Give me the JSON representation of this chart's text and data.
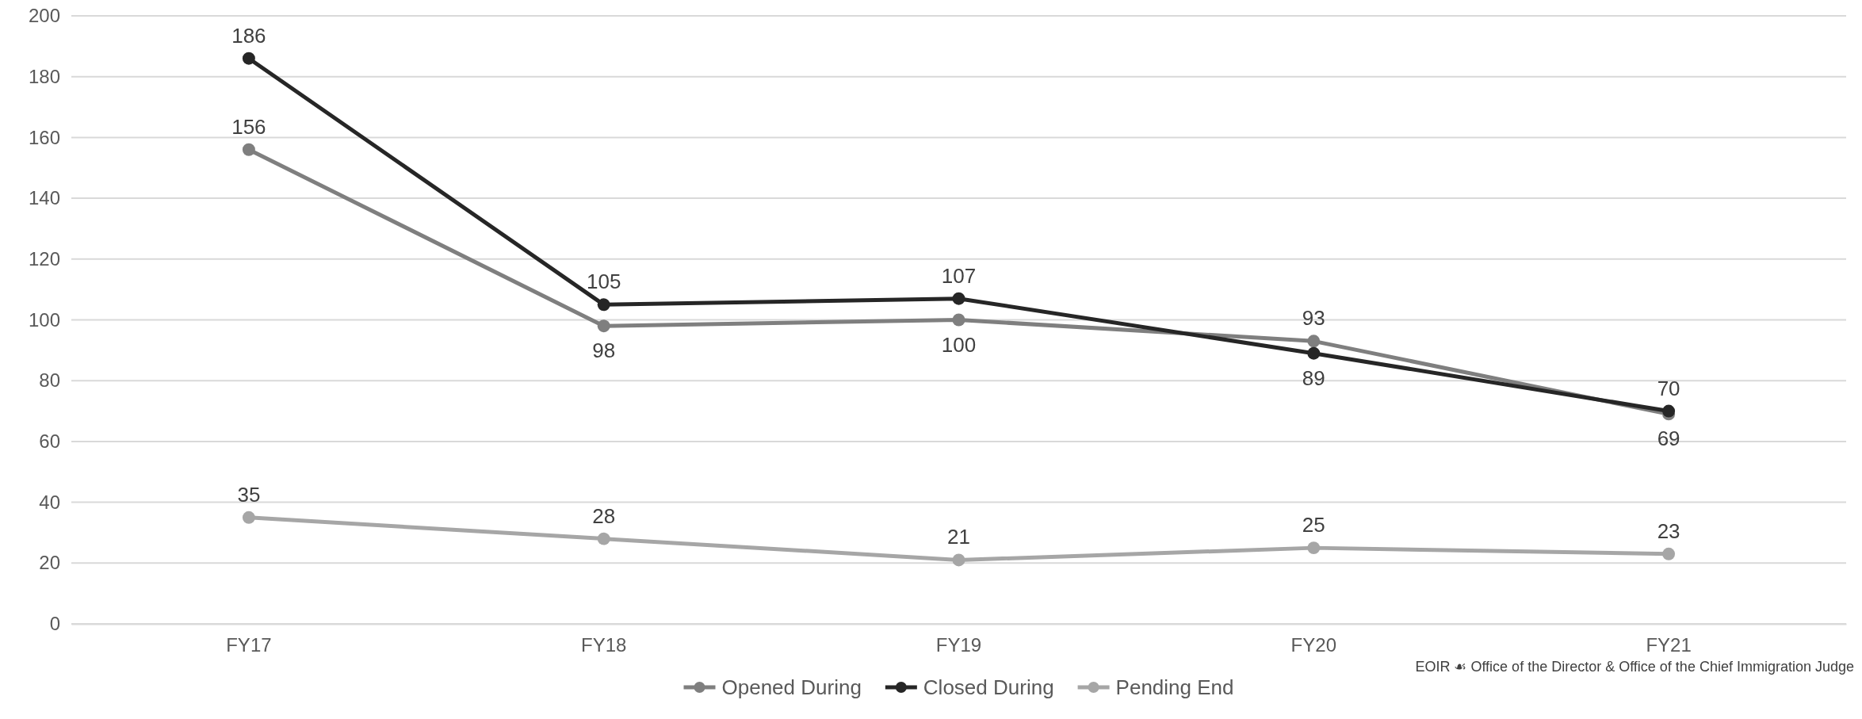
{
  "chart_data": {
    "type": "line",
    "categories": [
      "FY17",
      "FY18",
      "FY19",
      "FY20",
      "FY21"
    ],
    "series": [
      {
        "name": "Opened During",
        "color": "#7f7f7f",
        "values": [
          156,
          98,
          100,
          93,
          69
        ]
      },
      {
        "name": "Closed During",
        "color": "#262626",
        "values": [
          186,
          105,
          107,
          89,
          70
        ]
      },
      {
        "name": "Pending End",
        "color": "#a6a6a6",
        "values": [
          35,
          28,
          21,
          25,
          23
        ]
      }
    ],
    "ylim": [
      0,
      200
    ],
    "yticks": [
      0,
      20,
      40,
      60,
      80,
      100,
      120,
      140,
      160,
      180,
      200
    ],
    "grid": "y",
    "legend": "bottom",
    "marker": "circle",
    "line_style": "solid",
    "data_labels": true,
    "annotations": [
      "EOIR ☙ Office of the Director & Office of the Chief Immigration Judge"
    ]
  }
}
